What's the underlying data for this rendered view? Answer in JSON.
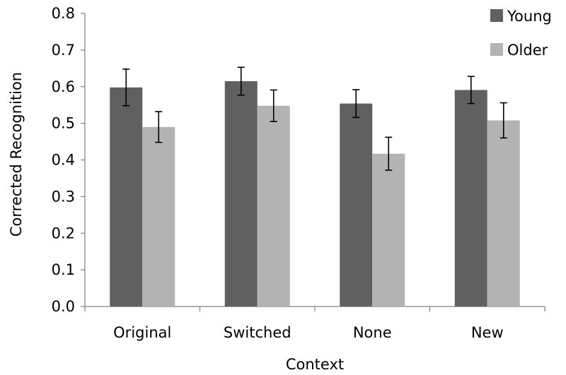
{
  "chart_data": {
    "type": "bar",
    "title": "",
    "xlabel": "Context",
    "ylabel": "Corrected Recognition",
    "ylim": [
      0,
      0.8
    ],
    "yticks": [
      "0.0",
      "0.1",
      "0.2",
      "0.3",
      "0.4",
      "0.5",
      "0.6",
      "0.7",
      "0.8"
    ],
    "categories": [
      "Original",
      "Switched",
      "None",
      "New"
    ],
    "series": [
      {
        "name": "Young",
        "color": "#606060",
        "values": [
          0.598,
          0.615,
          0.554,
          0.591
        ],
        "error": [
          0.05,
          0.038,
          0.038,
          0.037
        ]
      },
      {
        "name": "Older",
        "color": "#b3b3b3",
        "values": [
          0.49,
          0.548,
          0.417,
          0.508
        ],
        "error": [
          0.042,
          0.043,
          0.045,
          0.048
        ]
      }
    ],
    "legend_position": "top-right",
    "grid": false
  }
}
